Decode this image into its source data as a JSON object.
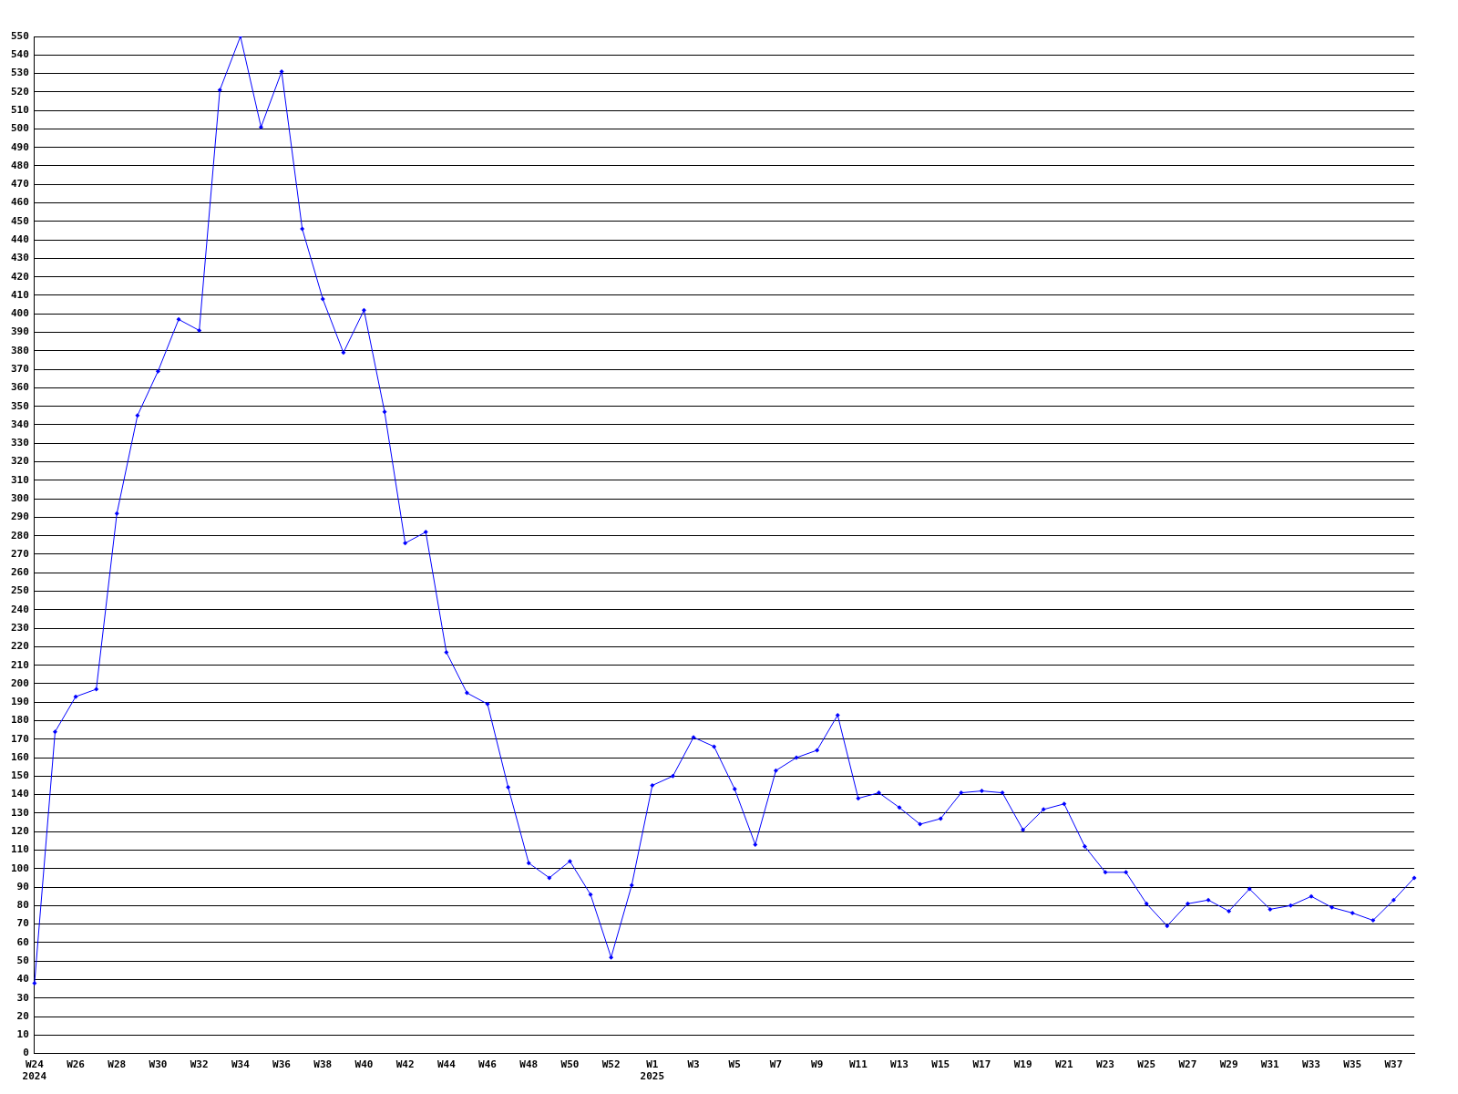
{
  "chart_data": {
    "type": "line",
    "categories": [
      "W24\n2024",
      null,
      "W26",
      null,
      "W28",
      null,
      "W30",
      null,
      "W32",
      null,
      "W34",
      null,
      "W36",
      null,
      "W38",
      null,
      "W40",
      null,
      "W42",
      null,
      "W44",
      null,
      "W46",
      null,
      "W48",
      null,
      "W50",
      null,
      "W52",
      null,
      "W1\n2025",
      null,
      "W3",
      null,
      "W5",
      null,
      "W7",
      null,
      "W9",
      null,
      "W11",
      null,
      "W13",
      null,
      "W15",
      null,
      "W17",
      null,
      "W19",
      null,
      "W21",
      null,
      "W23",
      null,
      "W25",
      null,
      "W27",
      null,
      "W29",
      null,
      "W31",
      null,
      "W33",
      null,
      "W35",
      null,
      "W37",
      null
    ],
    "series": [
      {
        "color": "#0000ff",
        "values": [
          38,
          174,
          193,
          197,
          292,
          345,
          369,
          397,
          391,
          521,
          550,
          501,
          531,
          446,
          408,
          379,
          402,
          347,
          276,
          282,
          217,
          195,
          189,
          144,
          103,
          95,
          104,
          86,
          52,
          91,
          145,
          150,
          171,
          166,
          143,
          113,
          153,
          160,
          164,
          183,
          138,
          141,
          133,
          124,
          127,
          141,
          142,
          141,
          121,
          132,
          135,
          112,
          98,
          98,
          81,
          69,
          81,
          83,
          77,
          89,
          78,
          80,
          85,
          79,
          76,
          72,
          83,
          95
        ]
      }
    ],
    "ylim": [
      0,
      550
    ],
    "yticks": [
      0,
      10,
      20,
      30,
      40,
      50,
      60,
      70,
      80,
      90,
      100,
      110,
      120,
      130,
      140,
      150,
      160,
      170,
      180,
      190,
      200,
      210,
      220,
      230,
      240,
      250,
      260,
      270,
      280,
      290,
      300,
      310,
      320,
      330,
      340,
      350,
      360,
      370,
      380,
      390,
      400,
      410,
      420,
      430,
      440,
      450,
      460,
      470,
      480,
      490,
      500,
      510,
      520,
      530,
      540,
      550
    ],
    "grid": "y",
    "marker": "diamond",
    "line_style": "solid"
  }
}
